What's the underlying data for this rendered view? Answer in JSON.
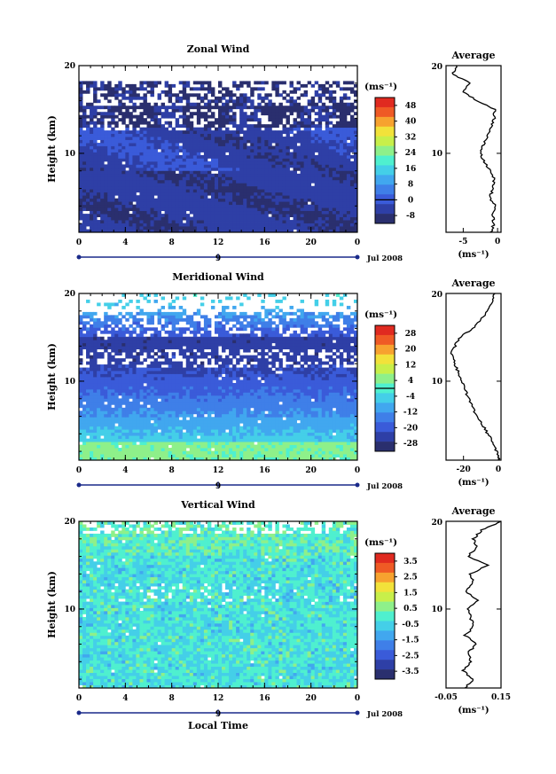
{
  "colors": {
    "background": "#ffffff",
    "axis": "#000000",
    "missing": "#ffffff",
    "scale": [
      "#2a2f6e",
      "#2e3fa6",
      "#3a5bd9",
      "#3f7fe8",
      "#41a7ef",
      "#44cfe8",
      "#4ff0cf",
      "#8ef08a",
      "#c8ef4a",
      "#f2e23a",
      "#f7a22f",
      "#ef5a25",
      "#e02a20"
    ]
  },
  "chart_data": [
    {
      "type": "heatmap",
      "id": "zonal",
      "title": "Zonal Wind",
      "ylabel": "Height (km)",
      "xlim": [
        0,
        24
      ],
      "ylim": [
        1,
        20
      ],
      "x_ticks": [
        "0",
        "4",
        "8",
        "12",
        "16",
        "20",
        "0"
      ],
      "y_ticks": [
        "10",
        "20"
      ],
      "date_label": "Jul 2008",
      "day_label": "9",
      "colorbar": {
        "unit": "(ms⁻¹)",
        "ticks": [
          "48",
          "40",
          "32",
          "24",
          "16",
          "8",
          "0",
          "-8"
        ],
        "vmin": -12,
        "vmax": 52,
        "zero_line": 0
      },
      "profile": {
        "title": "Average",
        "xlabel": "(ms⁻¹)",
        "x_ticks": [
          "-5",
          "0"
        ],
        "xlim": [
          -7.5,
          0.5
        ],
        "y_tick": "10",
        "top_label": "20",
        "heights": [
          1,
          2,
          3,
          4,
          5,
          6,
          7,
          8,
          9,
          10,
          11,
          12,
          13,
          14,
          15,
          16,
          17,
          18,
          19,
          20
        ],
        "values": [
          -1.0,
          -0.5,
          -0.8,
          -0.3,
          -1.2,
          -0.6,
          -0.5,
          -1.0,
          -2.0,
          -2.5,
          -2.0,
          -1.5,
          -1.0,
          -0.5,
          -0.4,
          -3.0,
          -5.0,
          -4.0,
          -6.5,
          -6.0
        ]
      }
    },
    {
      "type": "heatmap",
      "id": "meridional",
      "title": "Meridional Wind",
      "ylabel": "Height (km)",
      "xlim": [
        0,
        24
      ],
      "ylim": [
        1,
        20
      ],
      "x_ticks": [
        "0",
        "4",
        "8",
        "12",
        "16",
        "20",
        "0"
      ],
      "y_ticks": [
        "10",
        "20"
      ],
      "date_label": "Jul 2008",
      "day_label": "9",
      "colorbar": {
        "unit": "(ms⁻¹)",
        "ticks": [
          "28",
          "20",
          "12",
          "4",
          "-4",
          "-12",
          "-20",
          "-28"
        ],
        "vmin": -32,
        "vmax": 32,
        "zero_line": 0
      },
      "profile": {
        "title": "Average",
        "xlabel": "(ms⁻¹)",
        "x_ticks": [
          "-20",
          "0"
        ],
        "xlim": [
          -30,
          1.5
        ],
        "y_tick": "10",
        "top_label": "20",
        "heights": [
          1,
          2,
          3,
          4,
          5,
          6,
          7,
          8,
          9,
          10,
          11,
          12,
          13,
          14,
          15,
          16,
          17,
          18,
          19,
          20
        ],
        "values": [
          0.5,
          -1.0,
          -3.0,
          -6.0,
          -9.0,
          -12.0,
          -15.0,
          -17.0,
          -19.0,
          -21.0,
          -23.0,
          -25.0,
          -27.0,
          -25.0,
          -22.0,
          -15.0,
          -10.0,
          -6.0,
          -4.0,
          -2.0
        ]
      }
    },
    {
      "type": "heatmap",
      "id": "vertical",
      "title": "Vertical Wind",
      "ylabel": "Height (km)",
      "xlabel": "Local Time",
      "xlim": [
        0,
        24
      ],
      "ylim": [
        1,
        20
      ],
      "x_ticks": [
        "0",
        "4",
        "8",
        "12",
        "16",
        "20",
        "0"
      ],
      "y_ticks": [
        "10",
        "20"
      ],
      "date_label": "Jul 2008",
      "day_label": "9",
      "colorbar": {
        "unit": "(ms⁻¹)",
        "ticks": [
          "3.5",
          "2.5",
          "1.5",
          "0.5",
          "-0.5",
          "-1.5",
          "-2.5",
          "-3.5"
        ],
        "vmin": -4,
        "vmax": 4
      },
      "profile": {
        "title": "Average",
        "xlabel": "(ms⁻¹)",
        "x_ticks": [
          "-0.05",
          "0.15"
        ],
        "xlim": [
          -0.05,
          0.15
        ],
        "y_tick": "10",
        "top_label": "20",
        "heights": [
          1,
          2,
          3,
          4,
          5,
          6,
          7,
          8,
          9,
          10,
          11,
          12,
          13,
          14,
          15,
          16,
          17,
          18,
          19,
          20
        ],
        "values": [
          0.02,
          0.05,
          0.01,
          0.04,
          0.03,
          0.06,
          0.02,
          0.05,
          0.04,
          0.03,
          0.07,
          0.02,
          0.05,
          0.04,
          0.1,
          0.03,
          0.06,
          0.05,
          0.08,
          0.15
        ]
      }
    }
  ]
}
